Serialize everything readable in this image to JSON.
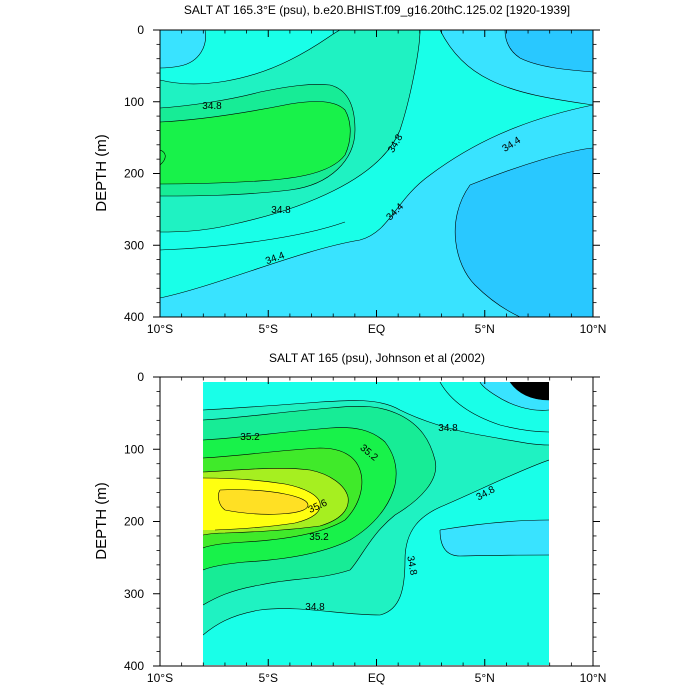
{
  "chart_data": [
    {
      "type": "contour",
      "title": "SALT AT 165.3°E (psu), b.e20.BHIST.f09_g16.20thC.125.02 [1920-1939]",
      "ylabel": "DEPTH (m)",
      "xlabel": "",
      "x_ticks": [
        "10°S",
        "5°S",
        "EQ",
        "5°N",
        "10°N"
      ],
      "y_ticks": [
        "0",
        "100",
        "200",
        "300",
        "400"
      ],
      "xlim": [
        -10,
        10
      ],
      "ylim": [
        400,
        0
      ],
      "contour_labels": [
        "34.8",
        "34.8",
        "34.8",
        "34.4",
        "34.4",
        "34.4"
      ],
      "colors": {
        "s34_0": "#29c8ff",
        "s34_2": "#39e3ff",
        "s34_4": "#19ffe8",
        "s34_6": "#1ff2c2",
        "s34_8": "#17ec96",
        "s35_0": "#18f24a"
      }
    },
    {
      "type": "contour",
      "title": "SALT AT 165 (psu), Johnson et al (2002)",
      "ylabel": "DEPTH (m)",
      "xlabel": "",
      "x_ticks": [
        "10°S",
        "5°S",
        "EQ",
        "5°N",
        "10°N"
      ],
      "y_ticks": [
        "0",
        "100",
        "200",
        "300",
        "400"
      ],
      "xlim": [
        -10,
        10
      ],
      "ylim": [
        400,
        0
      ],
      "data_xrange": [
        -8,
        8
      ],
      "data_yrange": [
        5,
        400
      ],
      "contour_labels": [
        "35.2",
        "35.2",
        "35.6",
        "35.2",
        "34.8",
        "34.8",
        "34.8",
        "34.8"
      ],
      "colors": {
        "s34_2": "#39e3ff",
        "s34_4": "#19ffe8",
        "s34_6": "#1ff2c2",
        "s34_8": "#17ec96",
        "s35_0": "#18f24a",
        "s35_2": "#40ea2a",
        "s35_4": "#a6ef20",
        "s35_6": "#ffff10",
        "s35_8": "#ffe024"
      }
    }
  ]
}
